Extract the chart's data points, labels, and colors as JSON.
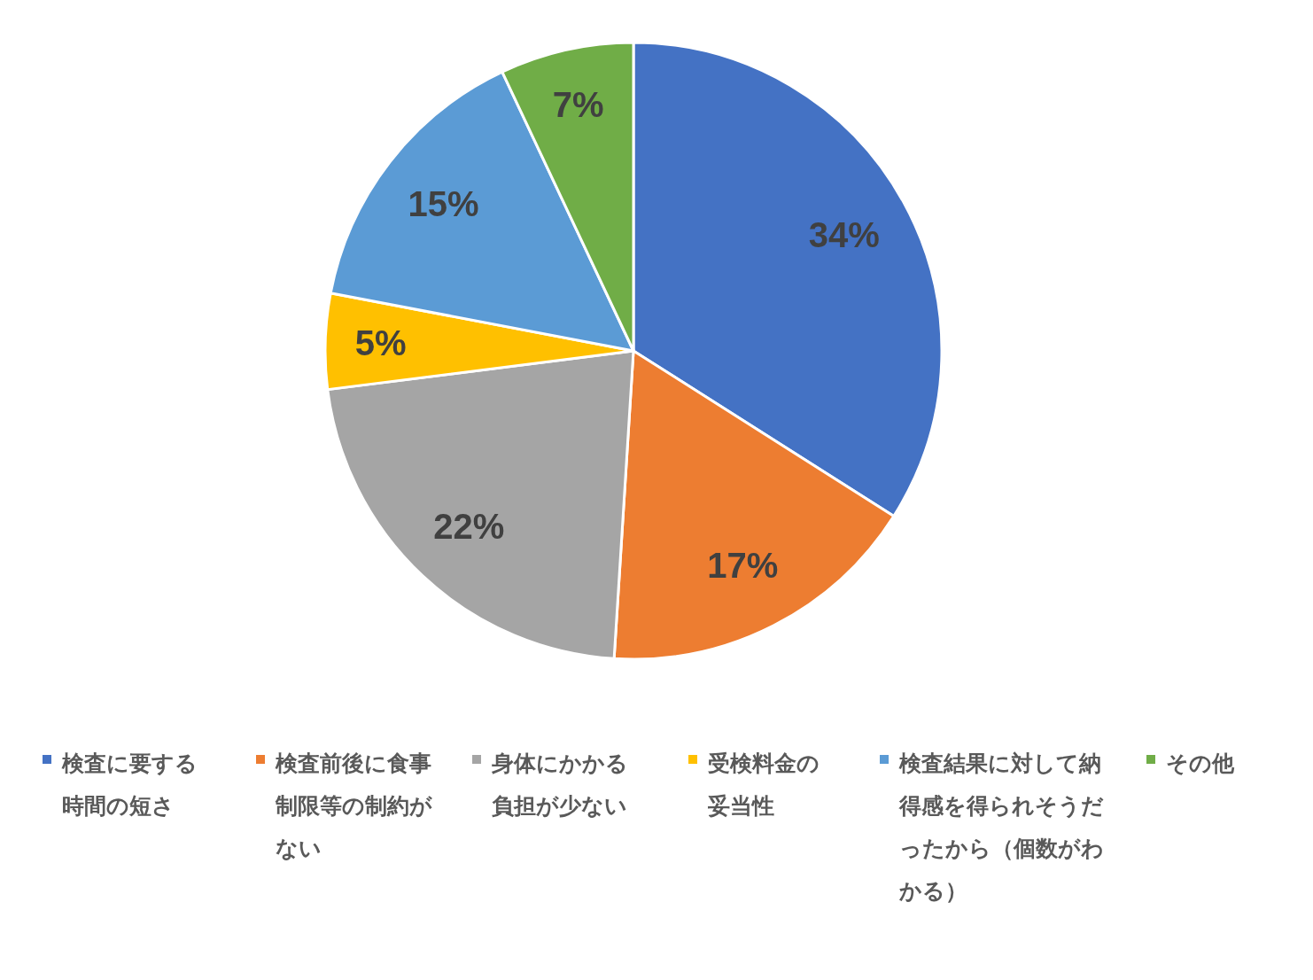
{
  "chart_data": {
    "type": "pie",
    "categories": [
      "検査に要する時間の短さ",
      "検査前後に食事制限等の制約がない",
      "身体にかかる負担が少ない",
      "受検料金の妥当性",
      "検査結果に対して納得感を得られそうだったから（個数がわかる）",
      "その他"
    ],
    "values": [
      34,
      17,
      22,
      5,
      15,
      7
    ],
    "colors": [
      "#4472c4",
      "#ed7d31",
      "#a5a5a5",
      "#ffc000",
      "#5b9bd5",
      "#70ad47"
    ],
    "value_labels": [
      "34%",
      "17%",
      "22%",
      "5%",
      "15%",
      "7%"
    ],
    "legend": "bottom"
  }
}
